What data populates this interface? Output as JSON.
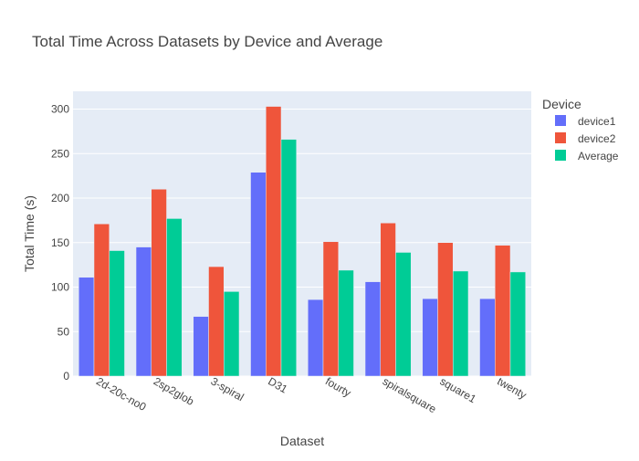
{
  "chart_data": {
    "type": "bar",
    "title": "Total Time Across Datasets by Device and Average",
    "xlabel": "Dataset",
    "ylabel": "Total Time (s)",
    "ylim": [
      0,
      320
    ],
    "yticks": [
      0,
      50,
      100,
      150,
      200,
      250,
      300
    ],
    "grid": true,
    "legend": {
      "title": "Device",
      "placement": "right-top"
    },
    "categories": [
      "2d-20c-no0",
      "2sp2glob",
      "3-spiral",
      "D31",
      "fourty",
      "spiralsquare",
      "square1",
      "twenty"
    ],
    "series": [
      {
        "name": "device1",
        "color": "#636efa",
        "values": [
          111,
          145,
          67,
          229,
          86,
          106,
          87,
          87
        ]
      },
      {
        "name": "device2",
        "color": "#ef553b",
        "values": [
          171,
          210,
          123,
          303,
          151,
          172,
          150,
          147
        ]
      },
      {
        "name": "Average",
        "color": "#00cc96",
        "values": [
          141,
          177,
          95,
          266,
          119,
          139,
          118,
          117
        ]
      }
    ]
  }
}
